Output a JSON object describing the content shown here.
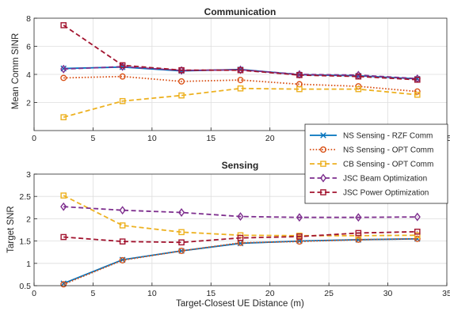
{
  "chart_data": [
    {
      "type": "line",
      "title": "Communication",
      "xlabel": "",
      "ylabel": "Mean Comm SINR",
      "xlim": [
        0,
        35
      ],
      "ylim": [
        0,
        8
      ],
      "xticks": [
        0,
        5,
        10,
        15,
        20,
        25,
        30,
        35
      ],
      "yticks": [
        2,
        4,
        6,
        8
      ],
      "grid": true,
      "legend_position": "right",
      "x": [
        2.5,
        7.5,
        12.5,
        17.5,
        22.5,
        27.5,
        32.5
      ],
      "series": [
        {
          "name": "NS Sensing - RZF Comm",
          "color": "#0072BD",
          "line": "solid",
          "marker": "x",
          "values": [
            4.42,
            4.52,
            4.25,
            4.35,
            3.98,
            3.9,
            3.68
          ]
        },
        {
          "name": "NS Sensing - OPT Comm",
          "color": "#D95319",
          "line": "dotted",
          "marker": "circle",
          "values": [
            3.75,
            3.85,
            3.5,
            3.6,
            3.3,
            3.15,
            2.78
          ]
        },
        {
          "name": "CB Sensing - OPT Comm",
          "color": "#EDB120",
          "line": "dashed",
          "marker": "square",
          "values": [
            0.95,
            2.1,
            2.5,
            3.0,
            2.95,
            2.95,
            2.55
          ]
        },
        {
          "name": "JSC Beam Optimization",
          "color": "#7E2F8E",
          "line": "dashed",
          "marker": "diamond",
          "values": [
            4.38,
            4.55,
            4.28,
            4.33,
            4.0,
            3.95,
            3.7
          ]
        },
        {
          "name": "JSC Power Optimization",
          "color": "#A2142F",
          "line": "dashed",
          "marker": "square",
          "values": [
            7.5,
            4.65,
            4.3,
            4.3,
            3.95,
            3.85,
            3.62
          ]
        }
      ]
    },
    {
      "type": "line",
      "title": "Sensing",
      "xlabel": "Target-Closest UE Distance (m)",
      "ylabel": "Target SNR",
      "xlim": [
        0,
        35
      ],
      "ylim": [
        0.5,
        3
      ],
      "xticks": [
        0,
        5,
        10,
        15,
        20,
        25,
        30,
        35
      ],
      "yticks": [
        0.5,
        1,
        1.5,
        2,
        2.5,
        3
      ],
      "grid": true,
      "x": [
        2.5,
        7.5,
        12.5,
        17.5,
        22.5,
        27.5,
        32.5
      ],
      "series": [
        {
          "name": "NS Sensing - RZF Comm",
          "color": "#0072BD",
          "line": "solid",
          "marker": "x",
          "values": [
            0.55,
            1.08,
            1.28,
            1.45,
            1.5,
            1.53,
            1.55
          ]
        },
        {
          "name": "NS Sensing - OPT Comm",
          "color": "#D95319",
          "line": "dotted",
          "marker": "circle",
          "values": [
            0.53,
            1.07,
            1.28,
            1.46,
            1.49,
            1.53,
            1.55
          ]
        },
        {
          "name": "CB Sensing - OPT Comm",
          "color": "#EDB120",
          "line": "dashed",
          "marker": "square",
          "values": [
            2.52,
            1.85,
            1.7,
            1.63,
            1.62,
            1.62,
            1.63
          ]
        },
        {
          "name": "JSC Beam Optimization",
          "color": "#7E2F8E",
          "line": "dashed",
          "marker": "diamond",
          "values": [
            2.27,
            2.19,
            2.14,
            2.05,
            2.03,
            2.03,
            2.04
          ]
        },
        {
          "name": "JSC Power Optimization",
          "color": "#A2142F",
          "line": "dashed",
          "marker": "square",
          "values": [
            1.59,
            1.49,
            1.47,
            1.57,
            1.6,
            1.68,
            1.71
          ]
        }
      ]
    }
  ]
}
